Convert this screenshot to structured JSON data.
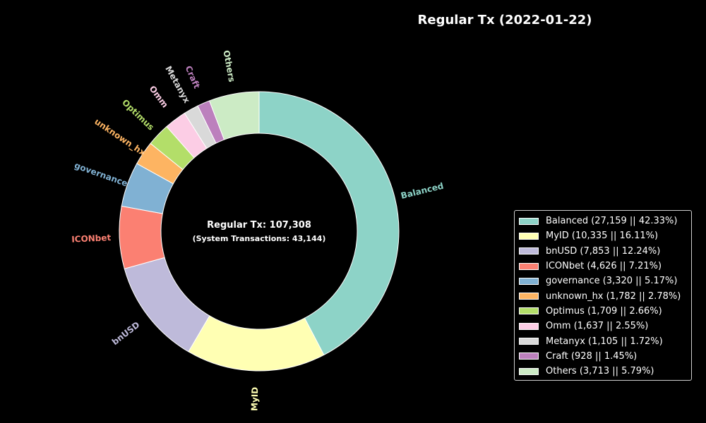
{
  "chart_data": {
    "type": "pie",
    "donut": true,
    "title": "Regular Tx (2022-01-22)",
    "center_text": {
      "line1": "Regular Tx: 107,308",
      "line2": "(System Transactions: 43,144)"
    },
    "legend_position": "right",
    "slices": [
      {
        "label": "Balanced",
        "value": 27159,
        "percent": 42.33,
        "color": "#8dd3c7",
        "legend": "Balanced (27,159 || 42.33%)"
      },
      {
        "label": "MyID",
        "value": 10335,
        "percent": 16.11,
        "color": "#ffffb3",
        "legend": "MyID (10,335 || 16.11%)"
      },
      {
        "label": "bnUSD",
        "value": 7853,
        "percent": 12.24,
        "color": "#bebada",
        "legend": "bnUSD (7,853 || 12.24%)"
      },
      {
        "label": "ICONbet",
        "value": 4626,
        "percent": 7.21,
        "color": "#fb8072",
        "legend": "ICONbet (4,626 || 7.21%)"
      },
      {
        "label": "governance",
        "value": 3320,
        "percent": 5.17,
        "color": "#80b1d3",
        "legend": "governance (3,320 || 5.17%)"
      },
      {
        "label": "unknown_hx",
        "value": 1782,
        "percent": 2.78,
        "color": "#fdb462",
        "legend": "unknown_hx (1,782 || 2.78%)"
      },
      {
        "label": "Optimus",
        "value": 1709,
        "percent": 2.66,
        "color": "#b3de69",
        "legend": "Optimus (1,709 || 2.66%)"
      },
      {
        "label": "Omm",
        "value": 1637,
        "percent": 2.55,
        "color": "#fccde5",
        "legend": "Omm (1,637 || 2.55%)"
      },
      {
        "label": "Metanyx",
        "value": 1105,
        "percent": 1.72,
        "color": "#d9d9d9",
        "legend": "Metanyx (1,105 || 1.72%)"
      },
      {
        "label": "Craft",
        "value": 928,
        "percent": 1.45,
        "color": "#bc80bd",
        "legend": "Craft (928 || 1.45%)"
      },
      {
        "label": "Others",
        "value": 3713,
        "percent": 5.79,
        "color": "#ccebc5",
        "legend": "Others (3,713 || 5.79%)"
      }
    ]
  }
}
